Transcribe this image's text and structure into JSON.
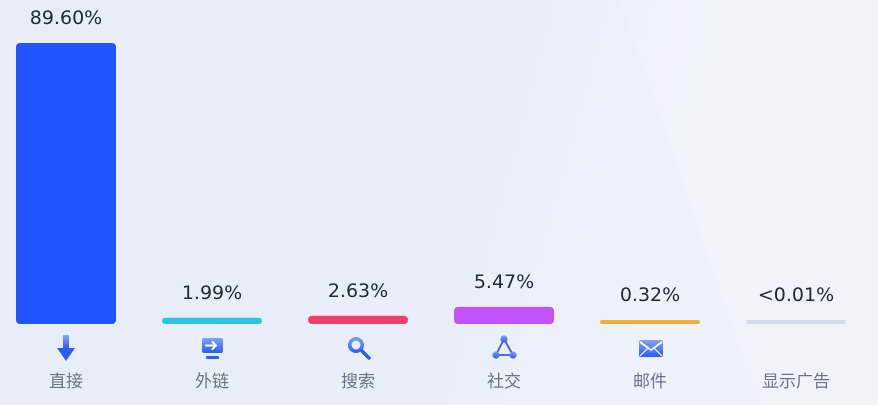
{
  "chart_data": {
    "type": "bar",
    "categories": [
      "直接",
      "外链",
      "搜索",
      "社交",
      "邮件",
      "显示广告"
    ],
    "values": [
      89.6,
      1.99,
      2.63,
      5.47,
      0.32,
      0.005
    ],
    "value_labels": [
      "89.60%",
      "1.99%",
      "2.63%",
      "5.47%",
      "0.32%",
      "<0.01%"
    ],
    "colors": [
      "#1f55fe",
      "#2dc4e4",
      "#f33d6e",
      "#c451fb",
      "#f7ad35",
      "#d3dbe8"
    ],
    "icons": [
      "download-arrow-icon",
      "monitor-link-icon",
      "search-icon",
      "share-icon",
      "mail-icon",
      "none"
    ],
    "title": "",
    "xlabel": "",
    "ylabel": "",
    "ylim": [
      0,
      89.6
    ],
    "grid": false,
    "legend": "none"
  }
}
